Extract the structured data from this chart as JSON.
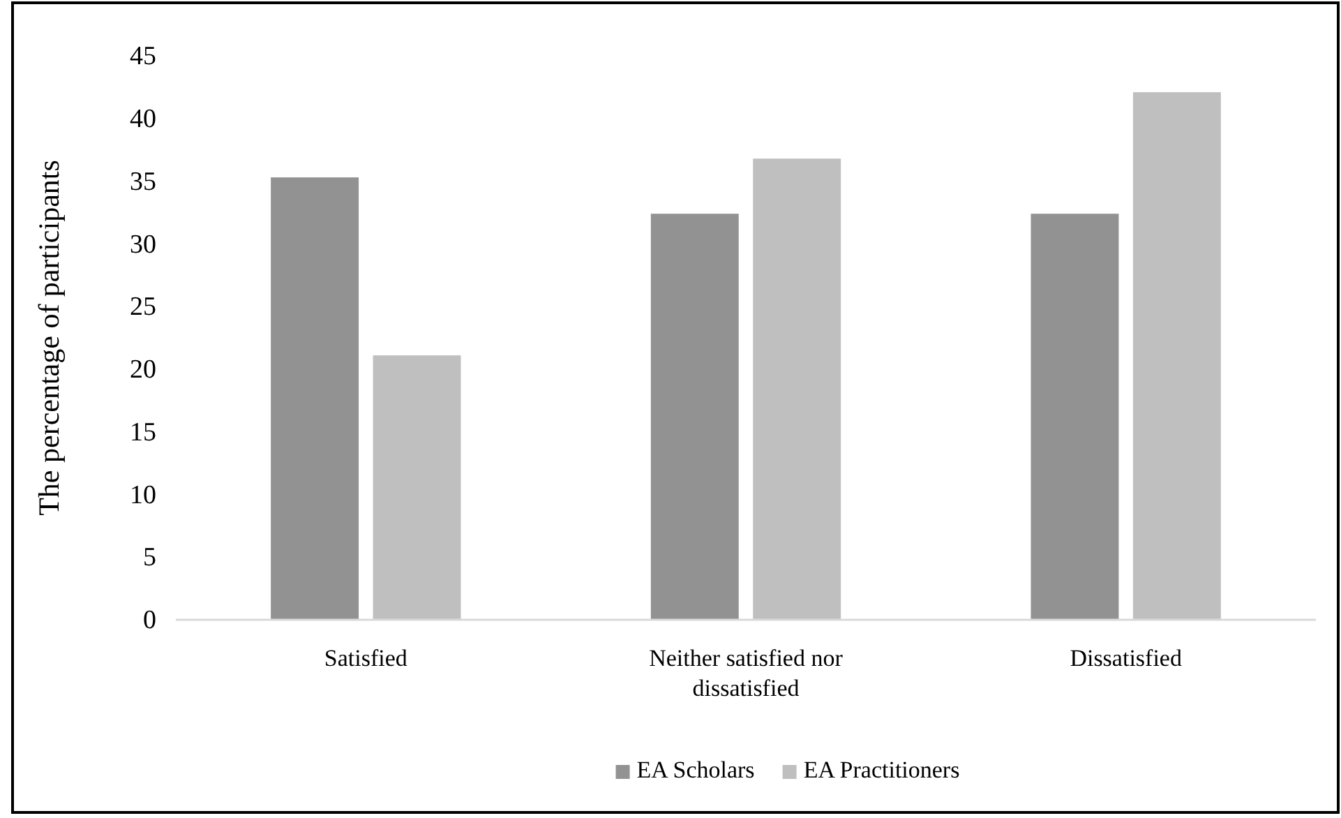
{
  "chart_data": {
    "type": "bar",
    "ylabel": "The percentage of participants",
    "categories": [
      "Satisfied",
      "Neither satisfied nor dissatisfied",
      "Dissatisfied"
    ],
    "series": [
      {
        "name": "EA Scholars",
        "color": "#929292",
        "values": [
          35.3,
          32.4,
          32.4
        ]
      },
      {
        "name": "EA Practitioners",
        "color": "#bfbfbf",
        "values": [
          21.1,
          36.8,
          42.1
        ]
      }
    ],
    "ylim": [
      0,
      45
    ],
    "yticks": [
      0,
      5,
      10,
      15,
      20,
      25,
      30,
      35,
      40,
      45
    ],
    "grid": false,
    "legend": "bottom"
  }
}
